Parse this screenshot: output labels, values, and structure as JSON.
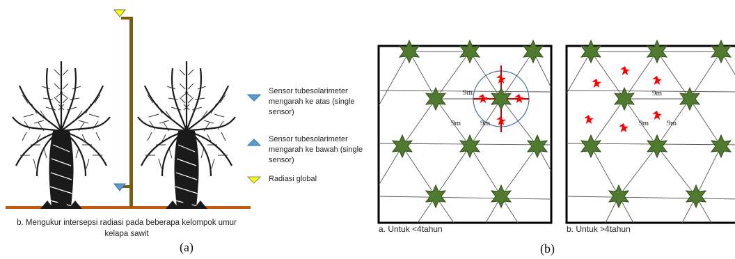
{
  "panel_a": {
    "caption": "b. Mengukur intersepsi radiasi pada beberapa kelompok umur kelapa sawit",
    "label": "(a)",
    "legend": [
      {
        "text": "Sensor tubesolarimeter mengarah ke atas (single sensor)",
        "icon": "triangle-down-blue",
        "color": "#5b9bd5"
      },
      {
        "text": "Sensor tubesolarimeter mengarah ke bawah (single sensor)",
        "icon": "triangle-up-blue",
        "color": "#5b9bd5"
      },
      {
        "text": "Radiasi global",
        "icon": "triangle-down-yellow",
        "color": "#ffff00"
      }
    ],
    "colors": {
      "pole": "#7a5c12",
      "ground": "#c55a11",
      "palm": "#1a1a1a"
    }
  },
  "panel_b": {
    "label": "(b)",
    "grid_left": {
      "caption": "a. Untuk <4tahun",
      "distance_labels": [
        "9m",
        "9m",
        "9m"
      ]
    },
    "grid_right": {
      "caption": "b. Untuk >4tahun",
      "distance_labels": [
        "9m",
        "9m",
        "9m"
      ]
    },
    "colors": {
      "tree": "#4f7a2f",
      "sensor": "#ff0000",
      "circle": "#4a6fa5"
    }
  }
}
